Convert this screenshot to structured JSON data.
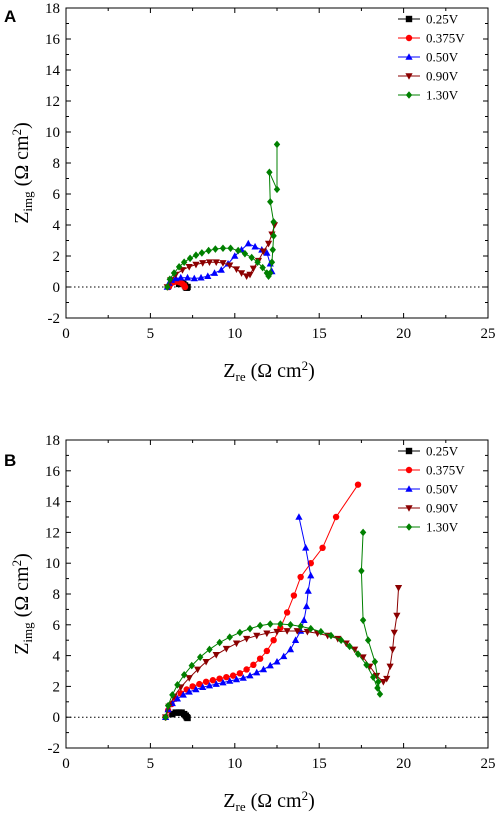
{
  "chart_data": [
    {
      "panel": "A",
      "type": "scatter",
      "xlabel": "Z",
      "xlabel_sub": "re",
      "xlabel_unit": " (Ω cm",
      "xlabel_sup": "2",
      "ylabel": "Z",
      "ylabel_sub": "img",
      "ylabel_unit": " (Ω cm",
      "ylabel_sup": "2",
      "xlim": [
        0,
        25
      ],
      "ylim": [
        -2,
        18
      ],
      "xticks": [
        "0",
        "5",
        "10",
        "15",
        "20",
        "25"
      ],
      "yticks": [
        "-2",
        "0",
        "2",
        "4",
        "6",
        "8",
        "10",
        "12",
        "14",
        "16",
        "18"
      ],
      "reference_line": 0,
      "legend_position": "top-right",
      "series": [
        {
          "name": "0.25V",
          "color": "#000000",
          "marker": "square",
          "points": [
            [
              6.7,
              0.2
            ],
            [
              6.85,
              0.25
            ],
            [
              6.95,
              0.2
            ],
            [
              7.05,
              0.1
            ],
            [
              7.1,
              0.0
            ],
            [
              7.15,
              -0.05
            ],
            [
              7.2,
              0.0
            ]
          ]
        },
        {
          "name": "0.375V",
          "color": "#ff0000",
          "marker": "circle",
          "points": [
            [
              6.1,
              0.0
            ],
            [
              6.2,
              0.2
            ],
            [
              6.35,
              0.3
            ],
            [
              6.55,
              0.35
            ],
            [
              6.75,
              0.3
            ],
            [
              6.9,
              0.2
            ],
            [
              7.0,
              0.1
            ],
            [
              7.05,
              0.0
            ]
          ]
        },
        {
          "name": "0.50V",
          "color": "#0000ff",
          "marker": "triangle-up",
          "points": [
            [
              6.0,
              0.0
            ],
            [
              6.1,
              0.25
            ],
            [
              6.25,
              0.45
            ],
            [
              6.5,
              0.55
            ],
            [
              6.8,
              0.6
            ],
            [
              7.2,
              0.6
            ],
            [
              7.6,
              0.55
            ],
            [
              8.0,
              0.6
            ],
            [
              8.4,
              0.7
            ],
            [
              8.8,
              0.9
            ],
            [
              9.2,
              1.1
            ],
            [
              9.6,
              1.5
            ],
            [
              10.0,
              2.0
            ],
            [
              10.4,
              2.4
            ],
            [
              10.8,
              2.8
            ],
            [
              11.2,
              2.6
            ],
            [
              11.6,
              2.4
            ],
            [
              11.9,
              2.2
            ],
            [
              12.1,
              1.5
            ],
            [
              12.2,
              1.0
            ]
          ]
        },
        {
          "name": "0.90V",
          "color": "#8b0000",
          "marker": "triangle-down",
          "points": [
            [
              6.0,
              0.0
            ],
            [
              6.2,
              0.45
            ],
            [
              6.5,
              0.8
            ],
            [
              6.9,
              1.1
            ],
            [
              7.3,
              1.3
            ],
            [
              7.7,
              1.45
            ],
            [
              8.1,
              1.55
            ],
            [
              8.5,
              1.6
            ],
            [
              8.9,
              1.6
            ],
            [
              9.3,
              1.55
            ],
            [
              9.7,
              1.4
            ],
            [
              10.1,
              1.15
            ],
            [
              10.4,
              0.9
            ],
            [
              10.7,
              0.7
            ],
            [
              10.9,
              0.8
            ],
            [
              11.1,
              1.2
            ],
            [
              11.4,
              1.7
            ],
            [
              11.7,
              2.3
            ],
            [
              12.0,
              2.8
            ],
            [
              12.2,
              3.4
            ],
            [
              12.35,
              4.0
            ]
          ]
        },
        {
          "name": "1.30V",
          "color": "#008000",
          "marker": "diamond",
          "points": [
            [
              6.0,
              0.0
            ],
            [
              6.15,
              0.5
            ],
            [
              6.4,
              0.9
            ],
            [
              6.7,
              1.3
            ],
            [
              7.0,
              1.6
            ],
            [
              7.35,
              1.85
            ],
            [
              7.7,
              2.05
            ],
            [
              8.05,
              2.2
            ],
            [
              8.45,
              2.35
            ],
            [
              8.85,
              2.45
            ],
            [
              9.3,
              2.5
            ],
            [
              9.75,
              2.5
            ],
            [
              10.2,
              2.35
            ],
            [
              10.6,
              2.15
            ],
            [
              11.0,
              1.9
            ],
            [
              11.35,
              1.6
            ],
            [
              11.65,
              1.25
            ],
            [
              11.9,
              0.9
            ],
            [
              12.0,
              0.7
            ],
            [
              12.1,
              0.9
            ],
            [
              12.2,
              1.6
            ],
            [
              12.25,
              2.4
            ],
            [
              12.3,
              3.3
            ],
            [
              12.3,
              4.2
            ],
            [
              12.1,
              5.5
            ],
            [
              12.05,
              7.4
            ],
            [
              12.5,
              6.3
            ],
            [
              12.5,
              9.2
            ]
          ]
        }
      ]
    },
    {
      "panel": "B",
      "type": "scatter",
      "xlabel": "Z",
      "xlabel_sub": "re",
      "xlabel_unit": " (Ω cm",
      "xlabel_sup": "2",
      "ylabel": "Z",
      "ylabel_sub": "img",
      "ylabel_unit": " (Ω cm",
      "ylabel_sup": "2",
      "xlim": [
        0,
        25
      ],
      "ylim": [
        -2,
        18
      ],
      "xticks": [
        "0",
        "5",
        "10",
        "15",
        "20",
        "25"
      ],
      "yticks": [
        "-2",
        "0",
        "2",
        "4",
        "6",
        "8",
        "10",
        "12",
        "14",
        "16",
        "18"
      ],
      "reference_line": 0,
      "legend_position": "top-right",
      "series": [
        {
          "name": "0.25V",
          "color": "#000000",
          "marker": "square",
          "points": [
            [
              6.3,
              0.2
            ],
            [
              6.5,
              0.3
            ],
            [
              6.7,
              0.3
            ],
            [
              6.85,
              0.3
            ],
            [
              7.0,
              0.2
            ],
            [
              7.1,
              0.1
            ],
            [
              7.15,
              0.0
            ],
            [
              7.2,
              -0.05
            ]
          ]
        },
        {
          "name": "0.375V",
          "color": "#ff0000",
          "marker": "circle",
          "points": [
            [
              5.9,
              0.0
            ],
            [
              6.05,
              0.45
            ],
            [
              6.25,
              0.85
            ],
            [
              6.5,
              1.2
            ],
            [
              6.8,
              1.55
            ],
            [
              7.15,
              1.8
            ],
            [
              7.5,
              2.0
            ],
            [
              7.9,
              2.15
            ],
            [
              8.3,
              2.3
            ],
            [
              8.7,
              2.4
            ],
            [
              9.1,
              2.5
            ],
            [
              9.5,
              2.6
            ],
            [
              9.9,
              2.7
            ],
            [
              10.3,
              2.85
            ],
            [
              10.7,
              3.1
            ],
            [
              11.1,
              3.4
            ],
            [
              11.5,
              3.8
            ],
            [
              11.9,
              4.3
            ],
            [
              12.3,
              5.0
            ],
            [
              12.7,
              5.8
            ],
            [
              13.1,
              6.8
            ],
            [
              13.5,
              7.9
            ],
            [
              13.9,
              9.1
            ],
            [
              14.5,
              10.0
            ],
            [
              15.2,
              11.0
            ],
            [
              16.0,
              13.0
            ],
            [
              17.3,
              15.1
            ]
          ]
        },
        {
          "name": "0.50V",
          "color": "#0000ff",
          "marker": "triangle-up",
          "points": [
            [
              5.9,
              0.0
            ],
            [
              6.05,
              0.5
            ],
            [
              6.3,
              0.9
            ],
            [
              6.6,
              1.2
            ],
            [
              6.95,
              1.45
            ],
            [
              7.3,
              1.65
            ],
            [
              7.7,
              1.8
            ],
            [
              8.1,
              1.95
            ],
            [
              8.5,
              2.05
            ],
            [
              8.9,
              2.15
            ],
            [
              9.3,
              2.25
            ],
            [
              9.7,
              2.35
            ],
            [
              10.1,
              2.45
            ],
            [
              10.5,
              2.55
            ],
            [
              10.9,
              2.7
            ],
            [
              11.3,
              2.9
            ],
            [
              11.7,
              3.1
            ],
            [
              12.1,
              3.35
            ],
            [
              12.5,
              3.6
            ],
            [
              12.9,
              3.95
            ],
            [
              13.3,
              4.4
            ],
            [
              13.6,
              5.0
            ],
            [
              13.9,
              5.6
            ],
            [
              14.1,
              6.3
            ],
            [
              14.25,
              7.2
            ],
            [
              14.35,
              8.2
            ],
            [
              14.5,
              9.2
            ],
            [
              14.2,
              11.0
            ],
            [
              13.8,
              13.0
            ]
          ]
        },
        {
          "name": "0.90V",
          "color": "#8b0000",
          "marker": "triangle-down",
          "points": [
            [
              5.9,
              0.0
            ],
            [
              6.1,
              0.7
            ],
            [
              6.4,
              1.35
            ],
            [
              6.8,
              1.95
            ],
            [
              7.3,
              2.55
            ],
            [
              7.8,
              3.1
            ],
            [
              8.3,
              3.6
            ],
            [
              8.9,
              4.05
            ],
            [
              9.5,
              4.45
            ],
            [
              10.1,
              4.8
            ],
            [
              10.7,
              5.1
            ],
            [
              11.3,
              5.3
            ],
            [
              11.9,
              5.45
            ],
            [
              12.5,
              5.55
            ],
            [
              13.1,
              5.6
            ],
            [
              13.7,
              5.6
            ],
            [
              14.3,
              5.55
            ],
            [
              14.9,
              5.45
            ],
            [
              15.5,
              5.3
            ],
            [
              16.1,
              5.1
            ],
            [
              16.6,
              4.8
            ],
            [
              17.1,
              4.4
            ],
            [
              17.6,
              3.9
            ],
            [
              18.0,
              3.3
            ],
            [
              18.4,
              2.7
            ],
            [
              18.8,
              2.3
            ],
            [
              19.0,
              2.5
            ],
            [
              19.2,
              3.3
            ],
            [
              19.35,
              4.4
            ],
            [
              19.45,
              5.5
            ],
            [
              19.6,
              6.6
            ],
            [
              19.7,
              8.4
            ]
          ]
        },
        {
          "name": "1.30V",
          "color": "#008000",
          "marker": "diamond",
          "points": [
            [
              5.9,
              0.0
            ],
            [
              6.05,
              0.75
            ],
            [
              6.3,
              1.45
            ],
            [
              6.6,
              2.1
            ],
            [
              7.0,
              2.75
            ],
            [
              7.45,
              3.35
            ],
            [
              7.95,
              3.9
            ],
            [
              8.5,
              4.4
            ],
            [
              9.1,
              4.85
            ],
            [
              9.7,
              5.2
            ],
            [
              10.3,
              5.5
            ],
            [
              10.9,
              5.75
            ],
            [
              11.5,
              5.95
            ],
            [
              12.1,
              6.05
            ],
            [
              12.7,
              6.05
            ],
            [
              13.3,
              6.0
            ],
            [
              13.9,
              5.9
            ],
            [
              14.5,
              5.75
            ],
            [
              15.1,
              5.55
            ],
            [
              15.7,
              5.3
            ],
            [
              16.3,
              5.0
            ],
            [
              16.8,
              4.6
            ],
            [
              17.3,
              4.1
            ],
            [
              17.8,
              3.4
            ],
            [
              18.2,
              2.6
            ],
            [
              18.45,
              1.9
            ],
            [
              18.6,
              1.5
            ],
            [
              18.5,
              2.3
            ],
            [
              18.3,
              3.6
            ],
            [
              17.9,
              5.0
            ],
            [
              17.6,
              6.3
            ],
            [
              17.5,
              9.5
            ],
            [
              17.6,
              12.0
            ]
          ]
        }
      ]
    }
  ]
}
